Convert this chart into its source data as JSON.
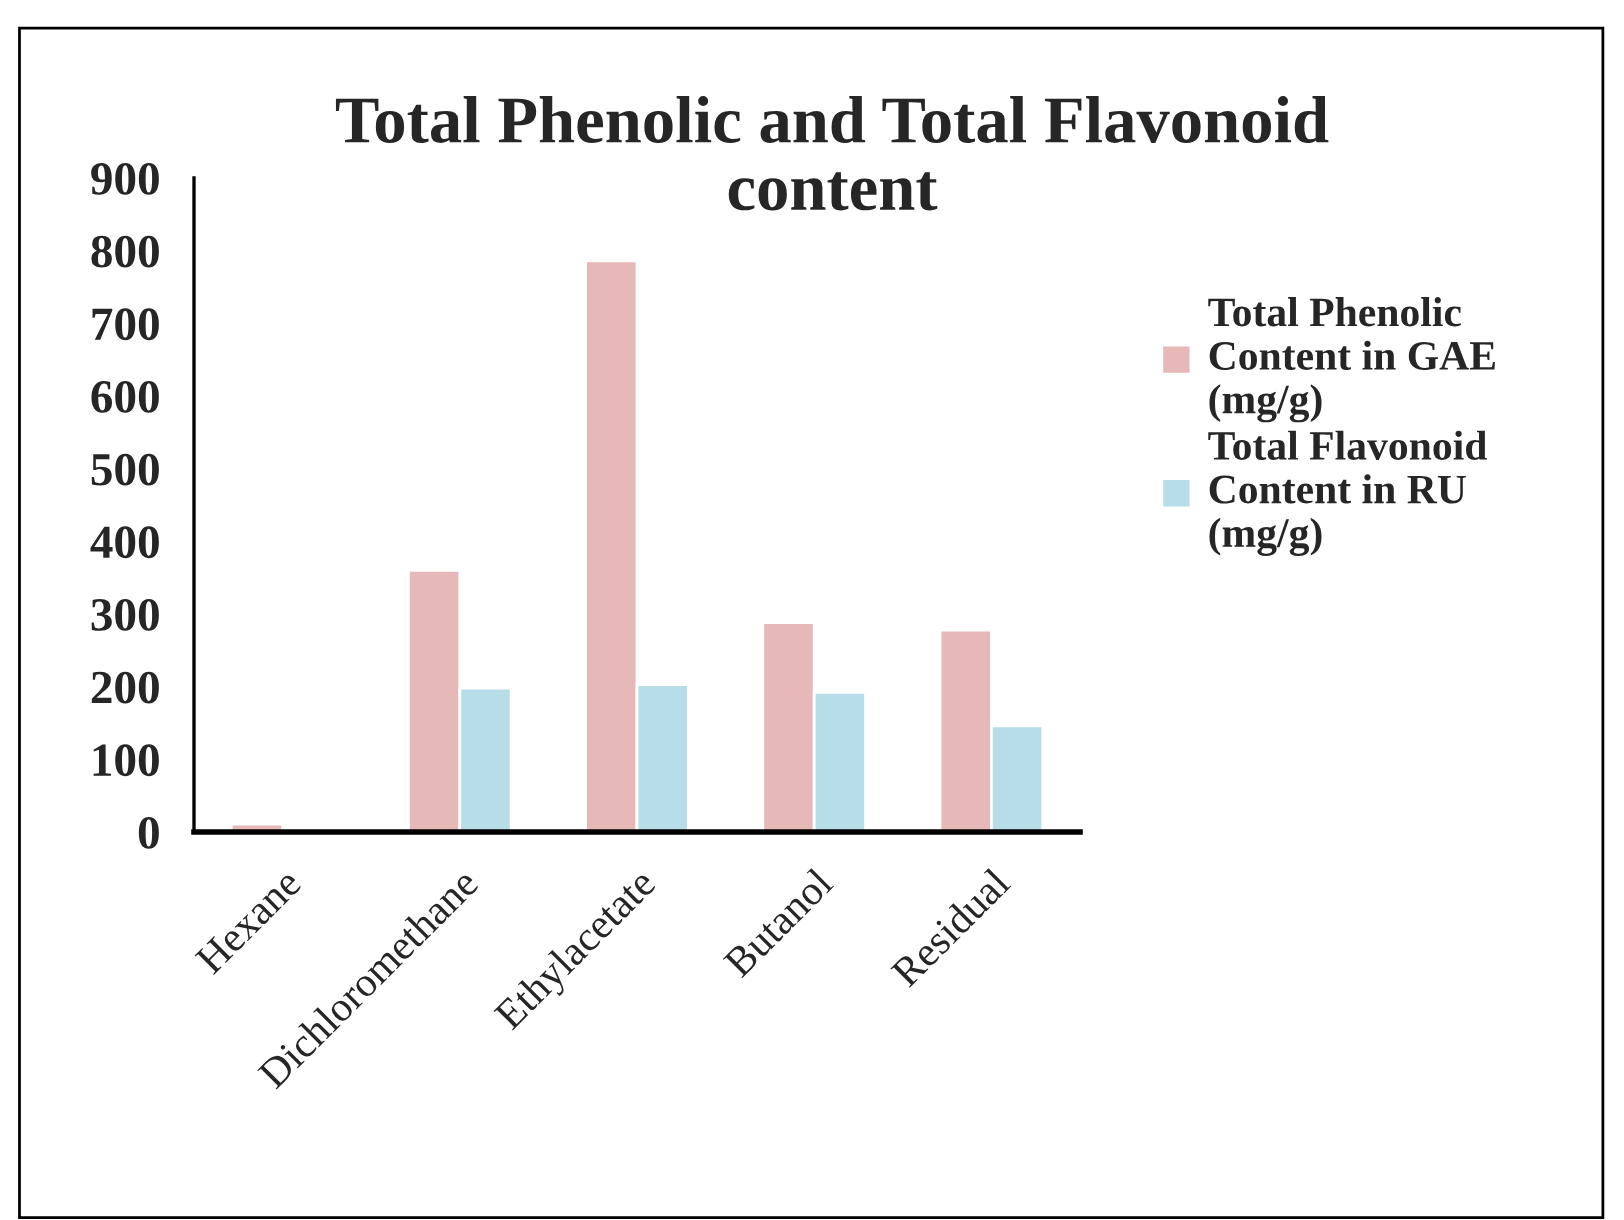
{
  "chart_data": {
    "type": "bar",
    "title": "Total Phenolic and Total Flavonoid\ncontent",
    "categories": [
      "Hexane",
      "Dichloromethane",
      "Ethylacetate",
      "Butanol",
      "Residual"
    ],
    "series": [
      {
        "name": "Total Phenolic\nContent in GAE\n(mg/g)",
        "color": "#e6b8b7",
        "values": [
          11,
          360,
          786,
          288,
          278
        ]
      },
      {
        "name": "Total Flavonoid\nContent in RU\n(mg/g)",
        "color": "#b7dde8",
        "values": [
          null,
          198,
          203,
          192,
          146
        ]
      }
    ],
    "ylim": [
      0,
      900
    ],
    "yticks": [
      0,
      100,
      200,
      300,
      400,
      500,
      600,
      700,
      800,
      900
    ],
    "grid": false,
    "legend": "right"
  }
}
